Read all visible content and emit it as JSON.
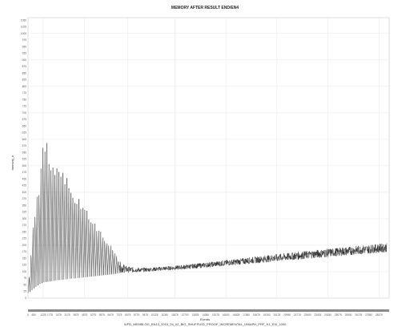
{
  "chart_data": {
    "type": "line",
    "title": "MEMORY AFTER RESULT END/EN4",
    "xlabel": "Events",
    "ylabel": "memory_k",
    "subtitle": "IUFD_MEMBLOG_EN13_2015_04_02_BIG_SHUFFLED_PROOF_INCREMENTAL_UNIAPH_PRF_K1_EXI_1000",
    "xlim": [
      0,
      29200
    ],
    "ylim": [
      0,
      1060
    ],
    "x_ticks": [
      0,
      450,
      1225,
      1775,
      2475,
      3175,
      3875,
      4575,
      5275,
      5975,
      6675,
      7375,
      8075,
      8775,
      9475,
      10225,
      11050,
      11875,
      12700,
      13525,
      14350,
      15175,
      16000,
      16825,
      17650,
      18475,
      19300,
      20125,
      20950,
      21775,
      22600,
      23425,
      24250,
      25075,
      25900,
      26725,
      27550,
      28375
    ],
    "x_tick_labels": [
      "0",
      "450",
      "1225",
      "1775",
      "2475",
      "3175",
      "3875",
      "4575",
      "5275",
      "5975",
      "6675",
      "7375",
      "8075",
      "8775",
      "9475",
      "10225",
      "11050",
      "11875",
      "12700",
      "13525",
      "14350",
      "15175",
      "16000",
      "16825",
      "17650",
      "18475",
      "19300",
      "20125",
      "20950",
      "21775",
      "22600",
      "23425",
      "24250",
      "25075",
      "25900",
      "26725",
      "27550",
      "28375"
    ],
    "y_ticks": [
      0,
      25,
      50,
      75,
      100,
      125,
      150,
      175,
      200,
      225,
      250,
      275,
      300,
      325,
      350,
      375,
      400,
      425,
      450,
      475,
      500,
      525,
      550,
      575,
      600,
      625,
      650,
      675,
      700,
      725,
      750,
      775,
      800,
      825,
      850,
      875,
      900,
      925,
      950,
      975,
      1000,
      1025,
      1050
    ],
    "y_tick_labels": [
      "0",
      "25",
      "50",
      "75",
      "100",
      "125",
      "150",
      "175",
      "200",
      "225",
      "250",
      "275",
      "300",
      "325",
      "350",
      "375",
      "400",
      "425",
      "450",
      "475",
      "500",
      "525",
      "550",
      "575",
      "600",
      "625",
      "650",
      "675",
      "700",
      "725",
      "750",
      "775",
      "800",
      "825",
      "850",
      "875",
      "900",
      "925",
      "950",
      "975",
      "1000",
      "1025",
      "1050"
    ],
    "grid": true,
    "series": [
      {
        "color": "#222222",
        "x": [
          0,
          200,
          420,
          700,
          1000,
          1300,
          1650,
          2000,
          2400,
          2800,
          3200,
          3600,
          4000,
          4400,
          4800,
          5200,
          5600,
          6000,
          6400,
          6800,
          7100,
          7400,
          8000,
          9000,
          10000,
          11000,
          12000,
          13000,
          14000,
          15000,
          16000,
          17000,
          18000,
          19000,
          20000,
          21000,
          22000,
          23000,
          24000,
          25000,
          26000,
          27000,
          28000,
          28500,
          29000
        ],
        "y_high": [
          40,
          150,
          300,
          380,
          480,
          610,
          575,
          540,
          510,
          480,
          450,
          420,
          385,
          355,
          330,
          300,
          270,
          245,
          220,
          195,
          165,
          140,
          120,
          115,
          116,
          120,
          123,
          128,
          133,
          138,
          144,
          149,
          155,
          160,
          166,
          171,
          176,
          181,
          186,
          190,
          195,
          200,
          203,
          206,
          208
        ],
        "y_low": [
          20,
          25,
          35,
          45,
          55,
          60,
          62,
          65,
          68,
          70,
          72,
          74,
          76,
          78,
          80,
          82,
          84,
          86,
          88,
          90,
          92,
          95,
          96,
          98,
          101,
          104,
          107,
          110,
          114,
          118,
          122,
          126,
          130,
          134,
          138,
          142,
          146,
          150,
          154,
          158,
          162,
          166,
          170,
          172,
          174
        ]
      }
    ]
  }
}
